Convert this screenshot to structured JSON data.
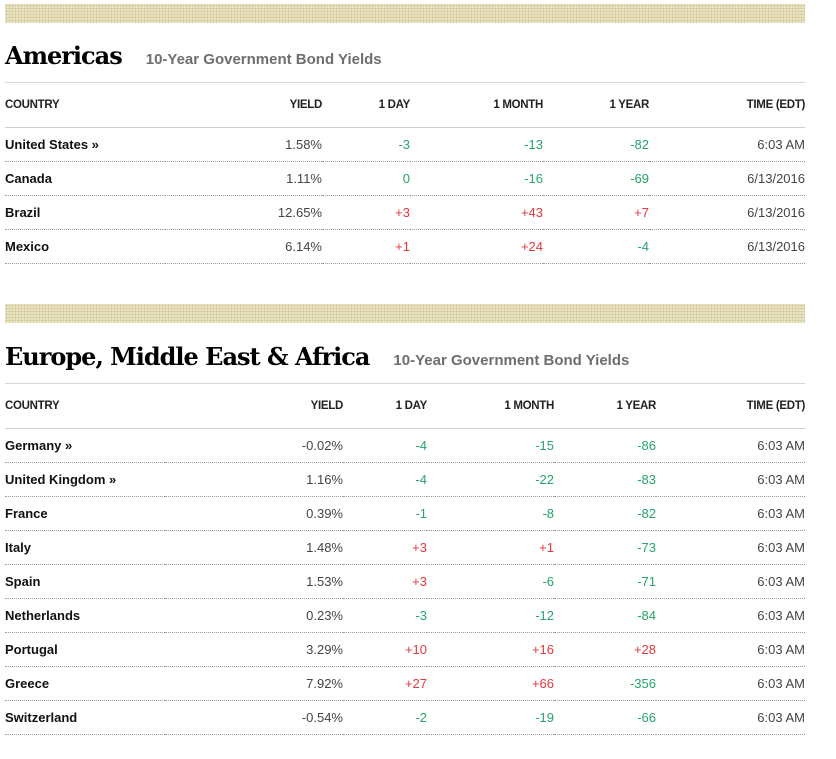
{
  "americas": {
    "region": "Americas",
    "subtitle": "10-Year Government Bond Yields",
    "headers": [
      "COUNTRY",
      "YIELD",
      "1 DAY",
      "1 MONTH",
      "1 YEAR",
      "TIME (EDT)"
    ],
    "rows": [
      {
        "country": "United States »",
        "yield": "1.58%",
        "day": "-3",
        "month": "-13",
        "year": "-82",
        "time": "6:03 AM"
      },
      {
        "country": "Canada",
        "yield": "1.11%",
        "day": "0",
        "month": "-16",
        "year": "-69",
        "time": "6/13/2016"
      },
      {
        "country": "Brazil",
        "yield": "12.65%",
        "day": "+3",
        "month": "+43",
        "year": "+7",
        "time": "6/13/2016"
      },
      {
        "country": "Mexico",
        "yield": "6.14%",
        "day": "+1",
        "month": "+24",
        "year": "-4",
        "time": "6/13/2016"
      }
    ]
  },
  "emea": {
    "region": "Europe, Middle East & Africa",
    "subtitle": "10-Year Government Bond Yields",
    "headers": [
      "COUNTRY",
      "YIELD",
      "1 DAY",
      "1 MONTH",
      "1 YEAR",
      "TIME (EDT)"
    ],
    "rows": [
      {
        "country": "Germany »",
        "yield": "-0.02%",
        "day": "-4",
        "month": "-15",
        "year": "-86",
        "time": "6:03 AM"
      },
      {
        "country": "United Kingdom »",
        "yield": "1.16%",
        "day": "-4",
        "month": "-22",
        "year": "-83",
        "time": "6:03 AM"
      },
      {
        "country": "France",
        "yield": "0.39%",
        "day": "-1",
        "month": "-8",
        "year": "-82",
        "time": "6:03 AM"
      },
      {
        "country": "Italy",
        "yield": "1.48%",
        "day": "+3",
        "month": "+1",
        "year": "-73",
        "time": "6:03 AM"
      },
      {
        "country": "Spain",
        "yield": "1.53%",
        "day": "+3",
        "month": "-6",
        "year": "-71",
        "time": "6:03 AM"
      },
      {
        "country": "Netherlands",
        "yield": "0.23%",
        "day": "-3",
        "month": "-12",
        "year": "-84",
        "time": "6:03 AM"
      },
      {
        "country": "Portugal",
        "yield": "3.29%",
        "day": "+10",
        "month": "+16",
        "year": "+28",
        "time": "6:03 AM"
      },
      {
        "country": "Greece",
        "yield": "7.92%",
        "day": "+27",
        "month": "+66",
        "year": "-356",
        "time": "6:03 AM"
      },
      {
        "country": "Switzerland",
        "yield": "-0.54%",
        "day": "-2",
        "month": "-19",
        "year": "-66",
        "time": "6:03 AM"
      }
    ]
  },
  "colors": {
    "up": "#e0393e",
    "down": "#26a56b",
    "hatch": "#e9e2c2"
  }
}
